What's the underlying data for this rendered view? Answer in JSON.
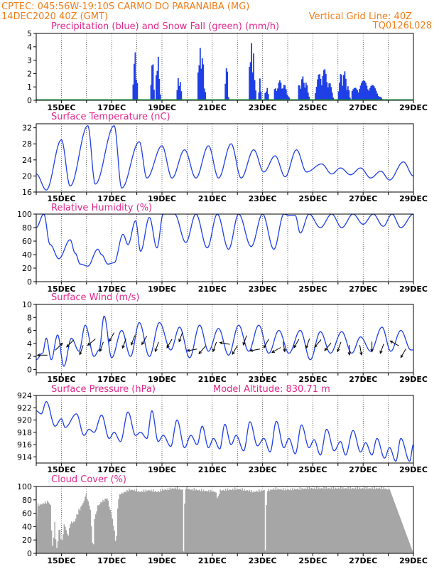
{
  "header": {
    "line1_left": "CPTEC:   045:56W-19:10S   CARMO DO PARANAIBA (MG)",
    "line2_left": "14DEC2020 40Z (GMT)",
    "line1_right": "Vertical Grid Line: 40Z",
    "line2_right": "TQ0126L028"
  },
  "colors": {
    "header": "#f07d1a",
    "title": "#e0288c",
    "line": "#1f3fe6",
    "snow": "#22b14c",
    "cloud": "#a6a6a6",
    "arrow": "#000000"
  },
  "chart_data": [
    {
      "id": "precip",
      "type": "bar",
      "title": "Precipitation (blue) and Snow Fall (green) (mm/h)",
      "x_range": [
        14.0,
        29.0
      ],
      "x_ticks": [
        "15DEC",
        "17DEC",
        "19DEC",
        "21DEC",
        "23DEC",
        "25DEC",
        "27DEC",
        "29DEC"
      ],
      "ylim": [
        0,
        5
      ],
      "y_ticks": [
        0,
        1,
        2,
        3,
        4,
        5
      ],
      "bursts": [
        {
          "start": 17.85,
          "end": 18.05,
          "peak": 3.7
        },
        {
          "start": 18.55,
          "end": 18.7,
          "peak": 3.6
        },
        {
          "start": 18.75,
          "end": 18.95,
          "peak": 3.4
        },
        {
          "start": 19.6,
          "end": 19.8,
          "peak": 1.9
        },
        {
          "start": 20.4,
          "end": 20.75,
          "peak": 4.0
        },
        {
          "start": 21.5,
          "end": 21.65,
          "peak": 3.2
        },
        {
          "start": 22.45,
          "end": 22.75,
          "peak": 4.4
        },
        {
          "start": 22.85,
          "end": 22.95,
          "peak": 2.0
        },
        {
          "start": 23.1,
          "end": 23.25,
          "peak": 1.5
        },
        {
          "start": 23.45,
          "end": 24.1,
          "peak": 1.5
        },
        {
          "start": 24.4,
          "end": 24.9,
          "peak": 1.8
        },
        {
          "start": 25.1,
          "end": 25.85,
          "peak": 2.4
        },
        {
          "start": 26.0,
          "end": 26.5,
          "peak": 2.3
        },
        {
          "start": 26.55,
          "end": 27.8,
          "peak": 1.5
        },
        {
          "start": 28.15,
          "end": 28.55,
          "peak": 2.0
        },
        {
          "start": 28.7,
          "end": 28.85,
          "peak": 2.0
        }
      ]
    },
    {
      "id": "temp",
      "type": "line",
      "title": "Surface Temperature (nC)",
      "x_range": [
        14.0,
        29.0
      ],
      "x_ticks": [
        "15DEC",
        "17DEC",
        "19DEC",
        "21DEC",
        "23DEC",
        "25DEC",
        "27DEC",
        "29DEC"
      ],
      "ylim": [
        16,
        33
      ],
      "y_ticks": [
        16,
        20,
        24,
        28,
        32
      ],
      "extrema": [
        [
          14.0,
          20.5
        ],
        [
          14.4,
          16.5
        ],
        [
          15.0,
          29
        ],
        [
          15.35,
          17.5
        ],
        [
          16.05,
          32.5
        ],
        [
          16.35,
          18
        ],
        [
          17.1,
          32.5
        ],
        [
          17.4,
          17
        ],
        [
          18.1,
          28.5
        ],
        [
          18.4,
          19.5
        ],
        [
          19.0,
          27.5
        ],
        [
          19.4,
          19.5
        ],
        [
          19.9,
          26.5
        ],
        [
          20.35,
          19.5
        ],
        [
          20.85,
          27.5
        ],
        [
          21.25,
          19.5
        ],
        [
          21.75,
          28
        ],
        [
          22.15,
          19.5
        ],
        [
          22.65,
          26.5
        ],
        [
          23.05,
          21
        ],
        [
          23.5,
          25
        ],
        [
          23.9,
          19.8
        ],
        [
          24.35,
          26.5
        ],
        [
          24.75,
          21
        ],
        [
          25.35,
          23
        ],
        [
          25.75,
          20.5
        ],
        [
          26.1,
          22
        ],
        [
          26.5,
          20.3
        ],
        [
          26.9,
          22
        ],
        [
          27.3,
          19.5
        ],
        [
          27.7,
          21.2
        ],
        [
          28.05,
          19
        ],
        [
          28.6,
          23.5
        ],
        [
          29.0,
          20
        ]
      ]
    },
    {
      "id": "rh",
      "type": "line",
      "title": "Relative Humidity (%)",
      "x_range": [
        14.0,
        29.0
      ],
      "x_ticks": [
        "15DEC",
        "17DEC",
        "19DEC",
        "21DEC",
        "23DEC",
        "25DEC",
        "27DEC",
        "29DEC"
      ],
      "ylim": [
        0,
        100
      ],
      "y_ticks": [
        0,
        20,
        40,
        60,
        80,
        100
      ],
      "extrema": [
        [
          14.0,
          80
        ],
        [
          14.3,
          100
        ],
        [
          14.55,
          55
        ],
        [
          14.9,
          34
        ],
        [
          15.35,
          62
        ],
        [
          15.55,
          42
        ],
        [
          15.75,
          26
        ],
        [
          16.05,
          23
        ],
        [
          16.45,
          48
        ],
        [
          16.6,
          40
        ],
        [
          16.85,
          26
        ],
        [
          17.1,
          28
        ],
        [
          17.45,
          70
        ],
        [
          17.65,
          55
        ],
        [
          17.95,
          90
        ],
        [
          18.15,
          45
        ],
        [
          18.5,
          95
        ],
        [
          18.8,
          50
        ],
        [
          19.05,
          100
        ],
        [
          19.5,
          100
        ],
        [
          19.95,
          58
        ],
        [
          20.35,
          100
        ],
        [
          20.8,
          50
        ],
        [
          21.2,
          100
        ],
        [
          21.65,
          48
        ],
        [
          22.05,
          100
        ],
        [
          22.55,
          52
        ],
        [
          23.0,
          100
        ],
        [
          23.45,
          48
        ],
        [
          23.85,
          100
        ],
        [
          24.05,
          98
        ],
        [
          24.3,
          98
        ],
        [
          24.5,
          72
        ],
        [
          24.85,
          100
        ],
        [
          25.3,
          80
        ],
        [
          25.75,
          100
        ],
        [
          26.15,
          80
        ],
        [
          26.6,
          100
        ],
        [
          27.0,
          85
        ],
        [
          27.4,
          100
        ],
        [
          27.8,
          82
        ],
        [
          28.15,
          100
        ],
        [
          28.5,
          80
        ],
        [
          29.0,
          100
        ]
      ]
    },
    {
      "id": "wind",
      "type": "line",
      "title": "Surface Wind (m/s)",
      "x_range": [
        14.0,
        29.0
      ],
      "x_ticks": [
        "15DEC",
        "17DEC",
        "19DEC",
        "21DEC",
        "23DEC",
        "25DEC",
        "27DEC",
        "29DEC"
      ],
      "ylim": [
        -0.5,
        10
      ],
      "y_ticks": [
        0,
        2,
        4,
        6,
        8,
        10
      ],
      "extrema": [
        [
          14.0,
          1.5
        ],
        [
          14.25,
          2.5
        ],
        [
          14.4,
          4.8
        ],
        [
          14.6,
          1.5
        ],
        [
          14.85,
          5.3
        ],
        [
          15.1,
          0.5
        ],
        [
          15.4,
          4.8
        ],
        [
          15.7,
          2.8
        ],
        [
          15.95,
          6.8
        ],
        [
          16.3,
          2
        ],
        [
          16.5,
          3
        ],
        [
          16.7,
          8.2
        ],
        [
          17.0,
          1.8
        ],
        [
          17.4,
          6
        ],
        [
          17.75,
          2
        ],
        [
          18.1,
          7.2
        ],
        [
          18.5,
          2
        ],
        [
          18.9,
          7.2
        ],
        [
          19.35,
          3
        ],
        [
          19.7,
          6.5
        ],
        [
          20.1,
          1.8
        ],
        [
          20.5,
          6.8
        ],
        [
          20.85,
          2.8
        ],
        [
          21.25,
          6.3
        ],
        [
          21.65,
          2.2
        ],
        [
          22.05,
          6.8
        ],
        [
          22.45,
          2.8
        ],
        [
          22.85,
          6.8
        ],
        [
          23.25,
          2.5
        ],
        [
          23.65,
          6
        ],
        [
          24.05,
          2.5
        ],
        [
          24.5,
          6
        ],
        [
          24.9,
          1.5
        ],
        [
          25.3,
          5.8
        ],
        [
          25.7,
          2.5
        ],
        [
          26.15,
          5.8
        ],
        [
          26.55,
          2.5
        ],
        [
          26.9,
          5
        ],
        [
          27.3,
          2.8
        ],
        [
          27.75,
          6.5
        ],
        [
          28.1,
          2.8
        ],
        [
          28.5,
          6
        ],
        [
          28.9,
          3
        ],
        [
          29.0,
          3
        ]
      ],
      "arrows": [
        [
          14.25,
          270,
          2.2
        ],
        [
          14.9,
          45,
          3.5
        ],
        [
          15.35,
          225,
          4
        ],
        [
          15.8,
          200,
          3
        ],
        [
          16.2,
          230,
          4.2
        ],
        [
          16.6,
          200,
          3.5
        ],
        [
          17.0,
          210,
          5
        ],
        [
          17.5,
          200,
          4
        ],
        [
          17.85,
          200,
          4.5
        ],
        [
          18.3,
          210,
          4.5
        ],
        [
          18.8,
          200,
          3.5
        ],
        [
          19.3,
          210,
          4
        ],
        [
          19.75,
          200,
          5
        ],
        [
          20.2,
          260,
          3
        ],
        [
          20.6,
          220,
          3
        ],
        [
          21.1,
          200,
          3.5
        ],
        [
          21.5,
          280,
          4
        ],
        [
          21.9,
          210,
          3
        ],
        [
          22.3,
          200,
          4.5
        ],
        [
          22.7,
          260,
          3
        ],
        [
          23.15,
          210,
          4
        ],
        [
          23.55,
          240,
          3
        ],
        [
          23.85,
          170,
          3.5
        ],
        [
          24.35,
          210,
          4
        ],
        [
          24.8,
          200,
          4
        ],
        [
          25.2,
          220,
          4
        ],
        [
          25.6,
          220,
          3.5
        ],
        [
          26.05,
          200,
          3.5
        ],
        [
          26.45,
          180,
          3
        ],
        [
          26.9,
          170,
          3
        ],
        [
          27.35,
          180,
          3.5
        ],
        [
          27.75,
          200,
          3.2
        ],
        [
          28.25,
          300,
          4
        ],
        [
          28.6,
          210,
          2.5
        ]
      ]
    },
    {
      "id": "pressure",
      "type": "line",
      "title": "Surface Pressure (hPa)",
      "annotation": "Model Altitude: 830.71 m",
      "x_range": [
        14.0,
        29.0
      ],
      "x_ticks": [
        "15DEC",
        "17DEC",
        "19DEC",
        "21DEC",
        "23DEC",
        "25DEC",
        "27DEC",
        "29DEC"
      ],
      "ylim": [
        913,
        924
      ],
      "y_ticks": [
        914,
        916,
        918,
        920,
        922,
        924
      ],
      "extrema": [
        [
          14.0,
          921.5
        ],
        [
          14.2,
          921
        ],
        [
          14.4,
          923
        ],
        [
          14.75,
          919
        ],
        [
          15.0,
          920.2
        ],
        [
          15.15,
          918.8
        ],
        [
          15.6,
          921
        ],
        [
          15.9,
          917.5
        ],
        [
          16.1,
          918.5
        ],
        [
          16.3,
          918
        ],
        [
          16.6,
          920.8
        ],
        [
          16.9,
          917
        ],
        [
          17.1,
          918
        ],
        [
          17.35,
          916.5
        ],
        [
          17.65,
          921.3
        ],
        [
          17.95,
          917.5
        ],
        [
          18.15,
          918
        ],
        [
          18.4,
          917
        ],
        [
          18.6,
          921.5
        ],
        [
          18.85,
          916.5
        ],
        [
          19.05,
          917.5
        ],
        [
          19.35,
          915.7
        ],
        [
          19.6,
          920
        ],
        [
          19.9,
          915.5
        ],
        [
          20.15,
          917.5
        ],
        [
          20.4,
          916
        ],
        [
          20.6,
          919
        ],
        [
          20.85,
          915.5
        ],
        [
          21.05,
          917
        ],
        [
          21.3,
          915.3
        ],
        [
          21.5,
          919.3
        ],
        [
          21.75,
          916
        ],
        [
          21.95,
          917.5
        ],
        [
          22.25,
          915
        ],
        [
          22.5,
          919.7
        ],
        [
          22.8,
          915.8
        ],
        [
          23.05,
          917
        ],
        [
          23.3,
          914.8
        ],
        [
          23.55,
          919.8
        ],
        [
          23.85,
          915.5
        ],
        [
          24.05,
          917
        ],
        [
          24.3,
          914.5
        ],
        [
          24.55,
          919.2
        ],
        [
          24.85,
          915.5
        ],
        [
          25.05,
          916.8
        ],
        [
          25.3,
          914.3
        ],
        [
          25.55,
          918.5
        ],
        [
          25.85,
          915
        ],
        [
          26.1,
          916.5
        ],
        [
          26.3,
          914.3
        ],
        [
          26.6,
          918.3
        ],
        [
          26.9,
          914.8
        ],
        [
          27.1,
          916.3
        ],
        [
          27.35,
          914.3
        ],
        [
          27.55,
          917
        ],
        [
          27.85,
          913.8
        ],
        [
          28.05,
          915.5
        ],
        [
          28.3,
          913.3
        ],
        [
          28.5,
          917
        ],
        [
          28.85,
          913.3
        ],
        [
          29.0,
          916
        ]
      ]
    },
    {
      "id": "cloud",
      "type": "area",
      "title": "Cloud Cover (%)",
      "x_range": [
        14.0,
        29.0
      ],
      "x_ticks": [
        "15DEC",
        "17DEC",
        "19DEC",
        "21DEC",
        "23DEC",
        "25DEC",
        "27DEC",
        "29DEC"
      ],
      "ylim": [
        0,
        100
      ],
      "y_ticks": [
        0,
        20,
        40,
        60,
        80,
        100
      ],
      "profile": [
        [
          14.05,
          75
        ],
        [
          14.35,
          78
        ],
        [
          14.45,
          80
        ],
        [
          14.55,
          75
        ],
        [
          14.6,
          35
        ],
        [
          14.65,
          5
        ],
        [
          14.7,
          50
        ],
        [
          14.8,
          10
        ],
        [
          14.9,
          40
        ],
        [
          15.0,
          20
        ],
        [
          15.1,
          45
        ],
        [
          15.25,
          30
        ],
        [
          15.35,
          48
        ],
        [
          15.5,
          50
        ],
        [
          15.6,
          60
        ],
        [
          15.7,
          68
        ],
        [
          15.85,
          78
        ],
        [
          15.95,
          90
        ],
        [
          16.1,
          75
        ],
        [
          16.25,
          12
        ],
        [
          16.3,
          55
        ],
        [
          16.45,
          75
        ],
        [
          16.6,
          80
        ],
        [
          16.8,
          85
        ],
        [
          16.95,
          65
        ],
        [
          17.05,
          45
        ],
        [
          17.15,
          20
        ],
        [
          17.25,
          85
        ],
        [
          17.35,
          92
        ],
        [
          17.55,
          95
        ],
        [
          17.7,
          98
        ],
        [
          17.9,
          97
        ],
        [
          18.1,
          95
        ],
        [
          18.5,
          97
        ],
        [
          18.8,
          95
        ],
        [
          19.1,
          98
        ],
        [
          19.5,
          100
        ],
        [
          19.8,
          98
        ],
        [
          19.85,
          0
        ],
        [
          19.9,
          100
        ],
        [
          20.2,
          98
        ],
        [
          20.8,
          96
        ],
        [
          21.1,
          95
        ],
        [
          21.2,
          85
        ],
        [
          21.3,
          97
        ],
        [
          21.7,
          98
        ],
        [
          22.0,
          99
        ],
        [
          22.35,
          97
        ],
        [
          22.6,
          95
        ],
        [
          23.05,
          97
        ],
        [
          23.1,
          2
        ],
        [
          23.15,
          97
        ],
        [
          23.5,
          99
        ],
        [
          24.0,
          98
        ],
        [
          24.4,
          99
        ],
        [
          24.9,
          100
        ],
        [
          25.3,
          100
        ],
        [
          25.8,
          100
        ],
        [
          26.3,
          100
        ],
        [
          26.8,
          100
        ],
        [
          27.3,
          100
        ],
        [
          27.8,
          100
        ],
        [
          28.1,
          97
        ],
        [
          28.2,
          85
        ],
        [
          28.3,
          98
        ],
        [
          28.5,
          100
        ],
        [
          28.9,
          100
        ],
        [
          29.0,
          100
        ]
      ]
    }
  ]
}
